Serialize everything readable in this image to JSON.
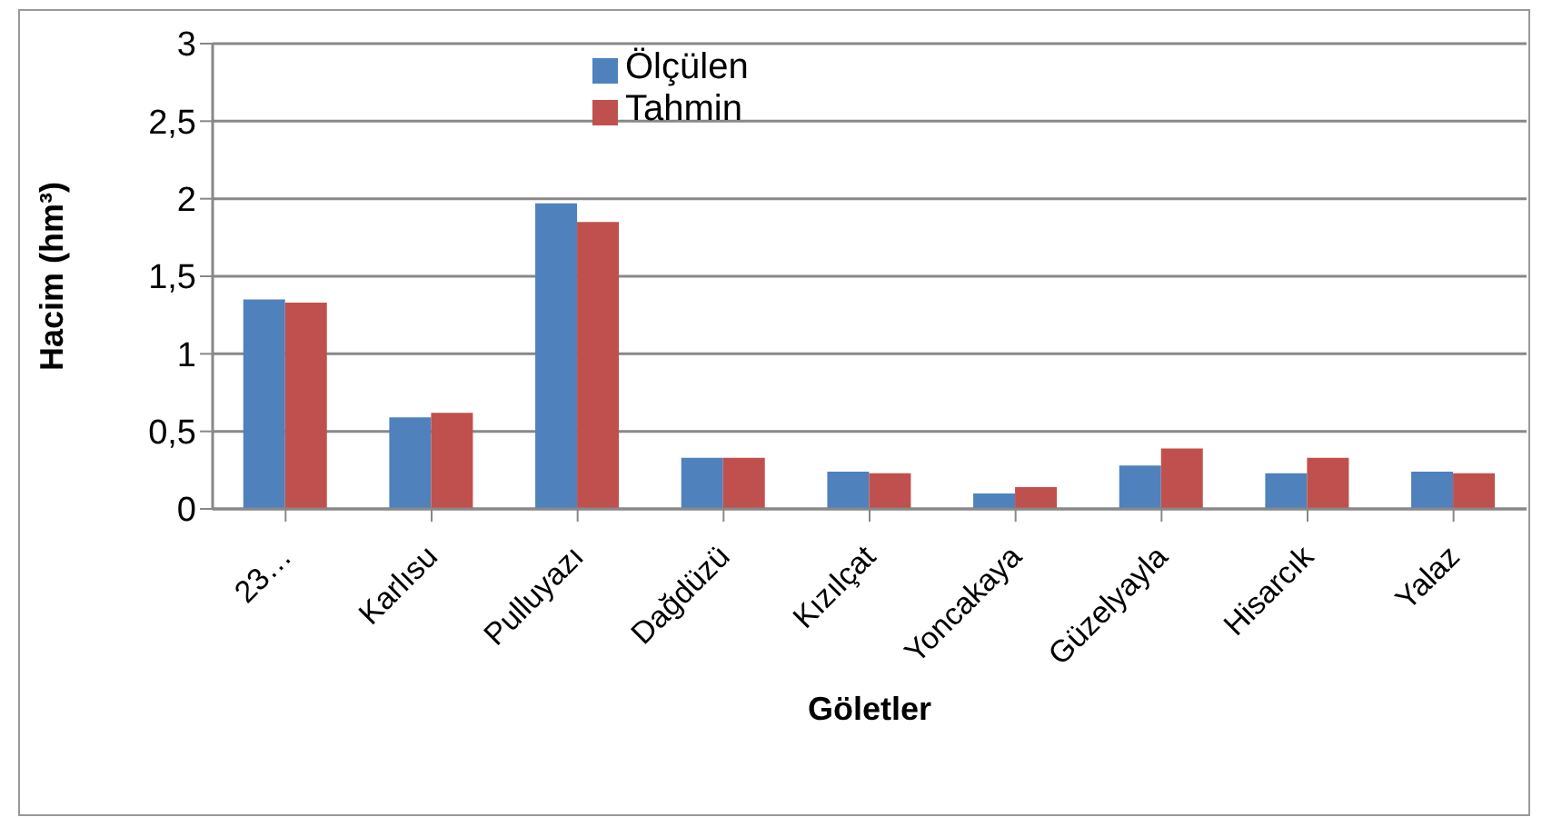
{
  "chart_data": {
    "type": "bar",
    "categories": [
      "23…",
      "Karlısu",
      "Pulluyazı",
      "Dağdüzü",
      "Kızılçat",
      "Yoncakaya",
      "Güzelyayla",
      "Hisarcık",
      "Yalaz"
    ],
    "series": [
      {
        "name": "Ölçülen",
        "color": "#4f81bd",
        "values": [
          1.35,
          0.59,
          1.97,
          0.33,
          0.24,
          0.1,
          0.28,
          0.23,
          0.24
        ]
      },
      {
        "name": "Tahmin",
        "color": "#c0504d",
        "values": [
          1.33,
          0.62,
          1.85,
          0.33,
          0.23,
          0.14,
          0.39,
          0.33,
          0.23
        ]
      }
    ],
    "xlabel": "Göletler",
    "ylabel": "Hacim (hm³)",
    "ylim": [
      0,
      3
    ],
    "yticks": [
      0,
      {
        "value": 0.5,
        "label": "0,5"
      },
      1,
      {
        "value": 1.5,
        "label": "1,5"
      },
      2,
      {
        "value": 2.5,
        "label": "2,5"
      },
      3
    ],
    "grid": "y",
    "legend": "top"
  }
}
